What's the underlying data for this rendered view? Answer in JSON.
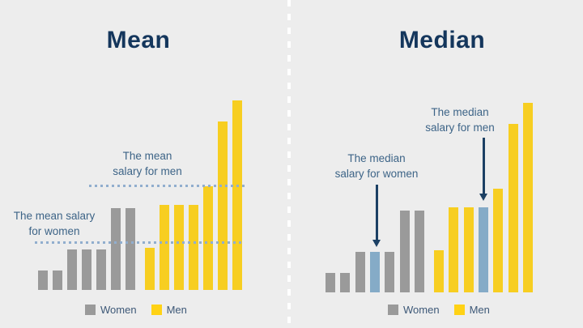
{
  "colors": {
    "background": "#EDEDED",
    "women_gray": "#9A9A9A",
    "men_yellow": "#F7CE21",
    "median_blue": "#85ABC7",
    "title_navy": "#14365C",
    "label_blue": "#3D6487",
    "arrow_navy": "#1C4064",
    "dotted_line_blue": "#91AECE",
    "divider_white": "#FFFFFF"
  },
  "chart_data": [
    {
      "type": "bar",
      "title": "Mean",
      "categories": [
        "Women",
        "Men"
      ],
      "series": [
        {
          "name": "Women",
          "values": [
            24,
            24,
            50,
            50,
            50,
            101,
            101
          ]
        },
        {
          "name": "Men",
          "values": [
            52,
            105,
            105,
            105,
            128,
            208,
            234
          ]
        }
      ],
      "annotations": {
        "men_mean": {
          "lines": [
            "The mean",
            "salary for men"
          ],
          "value": 130
        },
        "women_mean": {
          "lines": [
            "The mean salary",
            "for women"
          ],
          "value": 60
        }
      },
      "legend": {
        "women": "Women",
        "men": "Men"
      },
      "layout_hints": {
        "grid": false,
        "legend_position": "bottom",
        "mean_lines_style": "dotted"
      }
    },
    {
      "type": "bar",
      "title": "Median",
      "categories": [
        "Women",
        "Men"
      ],
      "series": [
        {
          "name": "Women",
          "values": [
            24,
            24,
            50,
            50,
            50,
            101,
            101
          ]
        },
        {
          "name": "Men",
          "values": [
            52,
            105,
            105,
            105,
            128,
            208,
            234
          ]
        }
      ],
      "highlight": {
        "median_bar_index": 3,
        "note": "4th bar of each group shown in blue"
      },
      "annotations": {
        "women_median": {
          "lines": [
            "The median",
            "salary for women"
          ]
        },
        "men_median": {
          "lines": [
            "The median",
            "salary for men"
          ]
        }
      },
      "legend": {
        "women": "Women",
        "men": "Men"
      },
      "layout_hints": {
        "grid": false,
        "legend_position": "bottom",
        "arrows": "point to median bars"
      }
    }
  ]
}
